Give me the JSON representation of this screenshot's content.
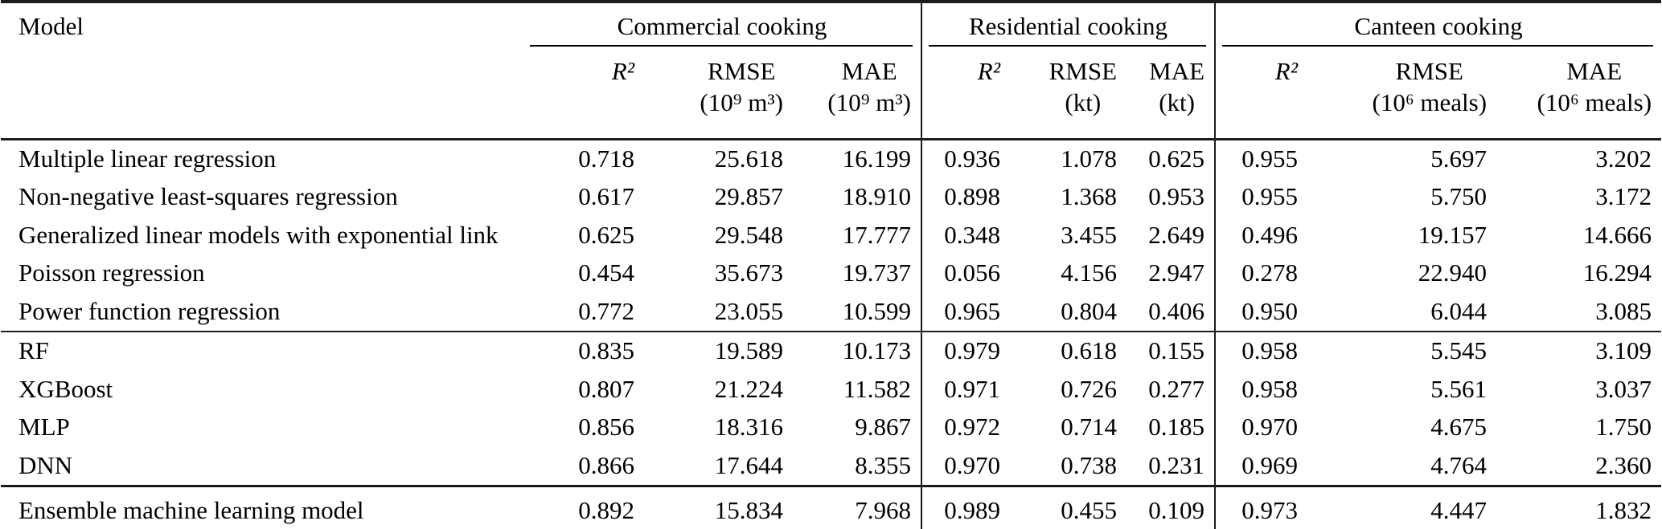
{
  "header": {
    "model_label": "Model",
    "groups": [
      {
        "label": "Commercial cooking",
        "cols": [
          {
            "metric": "R²",
            "unit": ""
          },
          {
            "metric": "RMSE",
            "unit": "(10⁹ m³)"
          },
          {
            "metric": "MAE",
            "unit": "(10⁹ m³)"
          }
        ]
      },
      {
        "label": "Residential cooking",
        "cols": [
          {
            "metric": "R²",
            "unit": ""
          },
          {
            "metric": "RMSE",
            "unit": "(kt)"
          },
          {
            "metric": "MAE",
            "unit": "(kt)"
          }
        ]
      },
      {
        "label": "Canteen cooking",
        "cols": [
          {
            "metric": "R²",
            "unit": ""
          },
          {
            "metric": "RMSE",
            "unit": "(10⁶ meals)"
          },
          {
            "metric": "MAE",
            "unit": "(10⁶ meals)"
          }
        ]
      }
    ]
  },
  "rows": [
    {
      "model": "Multiple linear regression",
      "v": [
        "0.718",
        "25.618",
        "16.199",
        "0.936",
        "1.078",
        "0.625",
        "0.955",
        "5.697",
        "3.202"
      ]
    },
    {
      "model": "Non-negative least-squares regression",
      "v": [
        "0.617",
        "29.857",
        "18.910",
        "0.898",
        "1.368",
        "0.953",
        "0.955",
        "5.750",
        "3.172"
      ]
    },
    {
      "model": "Generalized linear models with exponential link",
      "v": [
        "0.625",
        "29.548",
        "17.777",
        "0.348",
        "3.455",
        "2.649",
        "0.496",
        "19.157",
        "14.666"
      ]
    },
    {
      "model": "Poisson regression",
      "v": [
        "0.454",
        "35.673",
        "19.737",
        "0.056",
        "4.156",
        "2.947",
        "0.278",
        "22.940",
        "16.294"
      ]
    },
    {
      "model": "Power function regression",
      "v": [
        "0.772",
        "23.055",
        "10.599",
        "0.965",
        "0.804",
        "0.406",
        "0.950",
        "6.044",
        "3.085"
      ]
    },
    {
      "model": "RF",
      "v": [
        "0.835",
        "19.589",
        "10.173",
        "0.979",
        "0.618",
        "0.155",
        "0.958",
        "5.545",
        "3.109"
      ]
    },
    {
      "model": "XGBoost",
      "v": [
        "0.807",
        "21.224",
        "11.582",
        "0.971",
        "0.726",
        "0.277",
        "0.958",
        "5.561",
        "3.037"
      ]
    },
    {
      "model": "MLP",
      "v": [
        "0.856",
        "18.316",
        "9.867",
        "0.972",
        "0.714",
        "0.185",
        "0.970",
        "4.675",
        "1.750"
      ]
    },
    {
      "model": "DNN",
      "v": [
        "0.866",
        "17.644",
        "8.355",
        "0.970",
        "0.738",
        "0.231",
        "0.969",
        "4.764",
        "2.360"
      ]
    },
    {
      "model": "Ensemble machine learning model",
      "v": [
        "0.892",
        "15.834",
        "7.968",
        "0.989",
        "0.455",
        "0.109",
        "0.973",
        "4.447",
        "1.832"
      ]
    }
  ],
  "chart_data": {
    "type": "table",
    "title": "Model performance comparison across cooking emission categories",
    "column_groups": [
      "Commercial cooking",
      "Residential cooking",
      "Canteen cooking"
    ],
    "columns": [
      "Model",
      "R² (Commercial)",
      "RMSE (10⁹ m³)",
      "MAE (10⁹ m³)",
      "R² (Residential)",
      "RMSE (kt)",
      "MAE (kt)",
      "R² (Canteen)",
      "RMSE (10⁶ meals)",
      "MAE (10⁶ meals)"
    ],
    "rows": [
      [
        "Multiple linear regression",
        0.718,
        25.618,
        16.199,
        0.936,
        1.078,
        0.625,
        0.955,
        5.697,
        3.202
      ],
      [
        "Non-negative least-squares regression",
        0.617,
        29.857,
        18.91,
        0.898,
        1.368,
        0.953,
        0.955,
        5.75,
        3.172
      ],
      [
        "Generalized linear models with exponential link",
        0.625,
        29.548,
        17.777,
        0.348,
        3.455,
        2.649,
        0.496,
        19.157,
        14.666
      ],
      [
        "Poisson regression",
        0.454,
        35.673,
        19.737,
        0.056,
        4.156,
        2.947,
        0.278,
        22.94,
        16.294
      ],
      [
        "Power function regression",
        0.772,
        23.055,
        10.599,
        0.965,
        0.804,
        0.406,
        0.95,
        6.044,
        3.085
      ],
      [
        "RF",
        0.835,
        19.589,
        10.173,
        0.979,
        0.618,
        0.155,
        0.958,
        5.545,
        3.109
      ],
      [
        "XGBoost",
        0.807,
        21.224,
        11.582,
        0.971,
        0.726,
        0.277,
        0.958,
        5.561,
        3.037
      ],
      [
        "MLP",
        0.856,
        18.316,
        9.867,
        0.972,
        0.714,
        0.185,
        0.97,
        4.675,
        1.75
      ],
      [
        "DNN",
        0.866,
        17.644,
        8.355,
        0.97,
        0.738,
        0.231,
        0.969,
        4.764,
        2.36
      ],
      [
        "Ensemble machine learning model",
        0.892,
        15.834,
        7.968,
        0.989,
        0.455,
        0.109,
        0.973,
        4.447,
        1.832
      ]
    ],
    "row_sections": [
      [
        0,
        4
      ],
      [
        5,
        8
      ],
      [
        9,
        9
      ]
    ]
  }
}
